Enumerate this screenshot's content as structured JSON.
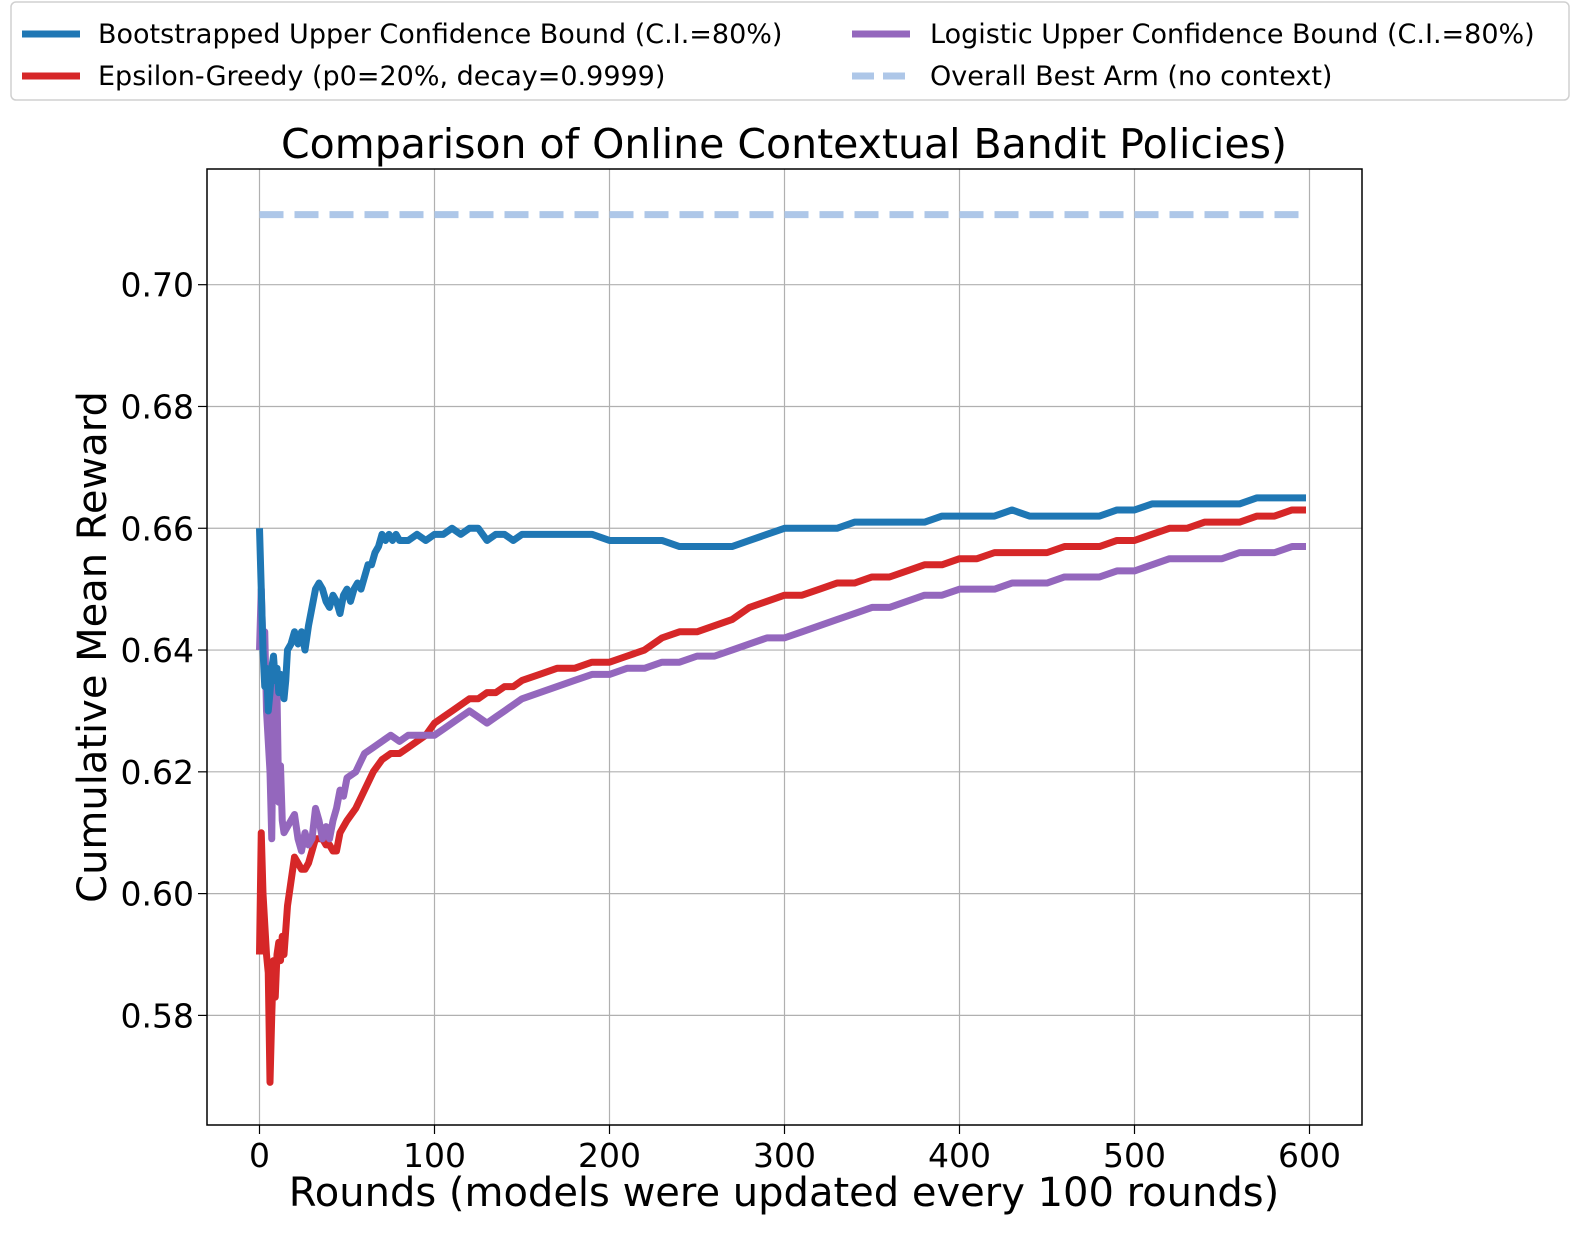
{
  "chart_data": {
    "type": "line",
    "title": "Comparison of Online Contextual Bandit Policies)",
    "xlabel": "Rounds (models were updated every 100 rounds)",
    "ylabel": "Cumulative Mean Reward",
    "xlim": [
      -30,
      630
    ],
    "ylim": [
      0.562,
      0.719
    ],
    "xticks": [
      0,
      100,
      200,
      300,
      400,
      500,
      600
    ],
    "xtick_labels": [
      "0",
      "100",
      "200",
      "300",
      "400",
      "500",
      "600"
    ],
    "yticks": [
      0.58,
      0.6,
      0.62,
      0.64,
      0.66,
      0.68,
      0.7
    ],
    "ytick_labels": [
      "0.58",
      "0.60",
      "0.62",
      "0.64",
      "0.66",
      "0.68",
      "0.70"
    ],
    "grid": true,
    "legend_position": "top, outside plot, two columns",
    "series": [
      {
        "name": "Bootstrapped Upper Confidence Bound (C.I.=80%)",
        "color": "#1f77b4",
        "style": "solid",
        "points": [
          [
            0,
            0.66
          ],
          [
            1,
            0.65
          ],
          [
            2,
            0.64
          ],
          [
            3,
            0.634
          ],
          [
            4,
            0.637
          ],
          [
            5,
            0.63
          ],
          [
            6,
            0.633
          ],
          [
            7,
            0.637
          ],
          [
            8,
            0.639
          ],
          [
            9,
            0.635
          ],
          [
            10,
            0.637
          ],
          [
            11,
            0.633
          ],
          [
            12,
            0.636
          ],
          [
            13,
            0.634
          ],
          [
            14,
            0.632
          ],
          [
            15,
            0.635
          ],
          [
            16,
            0.64
          ],
          [
            18,
            0.641
          ],
          [
            20,
            0.643
          ],
          [
            22,
            0.641
          ],
          [
            24,
            0.643
          ],
          [
            26,
            0.64
          ],
          [
            28,
            0.644
          ],
          [
            30,
            0.647
          ],
          [
            32,
            0.65
          ],
          [
            34,
            0.651
          ],
          [
            36,
            0.65
          ],
          [
            38,
            0.648
          ],
          [
            40,
            0.647
          ],
          [
            42,
            0.649
          ],
          [
            44,
            0.648
          ],
          [
            46,
            0.646
          ],
          [
            48,
            0.649
          ],
          [
            50,
            0.65
          ],
          [
            52,
            0.648
          ],
          [
            54,
            0.65
          ],
          [
            56,
            0.651
          ],
          [
            58,
            0.65
          ],
          [
            60,
            0.652
          ],
          [
            62,
            0.654
          ],
          [
            64,
            0.654
          ],
          [
            66,
            0.656
          ],
          [
            68,
            0.657
          ],
          [
            70,
            0.659
          ],
          [
            72,
            0.658
          ],
          [
            74,
            0.659
          ],
          [
            76,
            0.658
          ],
          [
            78,
            0.659
          ],
          [
            80,
            0.658
          ],
          [
            85,
            0.658
          ],
          [
            90,
            0.659
          ],
          [
            95,
            0.658
          ],
          [
            100,
            0.659
          ],
          [
            105,
            0.659
          ],
          [
            110,
            0.66
          ],
          [
            115,
            0.659
          ],
          [
            120,
            0.66
          ],
          [
            125,
            0.66
          ],
          [
            130,
            0.658
          ],
          [
            135,
            0.659
          ],
          [
            140,
            0.659
          ],
          [
            145,
            0.658
          ],
          [
            150,
            0.659
          ],
          [
            155,
            0.659
          ],
          [
            160,
            0.659
          ],
          [
            170,
            0.659
          ],
          [
            180,
            0.659
          ],
          [
            190,
            0.659
          ],
          [
            200,
            0.658
          ],
          [
            210,
            0.658
          ],
          [
            220,
            0.658
          ],
          [
            230,
            0.658
          ],
          [
            240,
            0.657
          ],
          [
            250,
            0.657
          ],
          [
            260,
            0.657
          ],
          [
            270,
            0.657
          ],
          [
            280,
            0.658
          ],
          [
            290,
            0.659
          ],
          [
            300,
            0.66
          ],
          [
            310,
            0.66
          ],
          [
            320,
            0.66
          ],
          [
            330,
            0.66
          ],
          [
            340,
            0.661
          ],
          [
            350,
            0.661
          ],
          [
            360,
            0.661
          ],
          [
            370,
            0.661
          ],
          [
            380,
            0.661
          ],
          [
            390,
            0.662
          ],
          [
            400,
            0.662
          ],
          [
            410,
            0.662
          ],
          [
            420,
            0.662
          ],
          [
            430,
            0.663
          ],
          [
            440,
            0.662
          ],
          [
            450,
            0.662
          ],
          [
            460,
            0.662
          ],
          [
            470,
            0.662
          ],
          [
            480,
            0.662
          ],
          [
            490,
            0.663
          ],
          [
            500,
            0.663
          ],
          [
            510,
            0.664
          ],
          [
            520,
            0.664
          ],
          [
            530,
            0.664
          ],
          [
            540,
            0.664
          ],
          [
            550,
            0.664
          ],
          [
            560,
            0.664
          ],
          [
            570,
            0.665
          ],
          [
            580,
            0.665
          ],
          [
            590,
            0.665
          ],
          [
            598,
            0.665
          ]
        ]
      },
      {
        "name": "Epsilon-Greedy (p0=20%, decay=0.9999)",
        "color": "#d62728",
        "style": "solid",
        "points": [
          [
            0,
            0.59
          ],
          [
            1,
            0.61
          ],
          [
            2,
            0.6
          ],
          [
            3,
            0.595
          ],
          [
            4,
            0.59
          ],
          [
            5,
            0.587
          ],
          [
            6,
            0.569
          ],
          [
            7,
            0.58
          ],
          [
            8,
            0.589
          ],
          [
            9,
            0.583
          ],
          [
            10,
            0.59
          ],
          [
            11,
            0.592
          ],
          [
            12,
            0.589
          ],
          [
            13,
            0.593
          ],
          [
            14,
            0.59
          ],
          [
            16,
            0.598
          ],
          [
            18,
            0.602
          ],
          [
            20,
            0.606
          ],
          [
            22,
            0.605
          ],
          [
            24,
            0.604
          ],
          [
            26,
            0.604
          ],
          [
            28,
            0.605
          ],
          [
            30,
            0.607
          ],
          [
            32,
            0.609
          ],
          [
            34,
            0.609
          ],
          [
            36,
            0.609
          ],
          [
            38,
            0.608
          ],
          [
            40,
            0.608
          ],
          [
            42,
            0.607
          ],
          [
            44,
            0.607
          ],
          [
            46,
            0.61
          ],
          [
            48,
            0.611
          ],
          [
            50,
            0.612
          ],
          [
            55,
            0.614
          ],
          [
            60,
            0.617
          ],
          [
            65,
            0.62
          ],
          [
            70,
            0.622
          ],
          [
            75,
            0.623
          ],
          [
            80,
            0.623
          ],
          [
            85,
            0.624
          ],
          [
            90,
            0.625
          ],
          [
            95,
            0.626
          ],
          [
            100,
            0.628
          ],
          [
            105,
            0.629
          ],
          [
            110,
            0.63
          ],
          [
            115,
            0.631
          ],
          [
            120,
            0.632
          ],
          [
            125,
            0.632
          ],
          [
            130,
            0.633
          ],
          [
            135,
            0.633
          ],
          [
            140,
            0.634
          ],
          [
            145,
            0.634
          ],
          [
            150,
            0.635
          ],
          [
            160,
            0.636
          ],
          [
            170,
            0.637
          ],
          [
            180,
            0.637
          ],
          [
            190,
            0.638
          ],
          [
            200,
            0.638
          ],
          [
            210,
            0.639
          ],
          [
            220,
            0.64
          ],
          [
            230,
            0.642
          ],
          [
            240,
            0.643
          ],
          [
            250,
            0.643
          ],
          [
            260,
            0.644
          ],
          [
            270,
            0.645
          ],
          [
            280,
            0.647
          ],
          [
            290,
            0.648
          ],
          [
            300,
            0.649
          ],
          [
            310,
            0.649
          ],
          [
            320,
            0.65
          ],
          [
            330,
            0.651
          ],
          [
            340,
            0.651
          ],
          [
            350,
            0.652
          ],
          [
            360,
            0.652
          ],
          [
            370,
            0.653
          ],
          [
            380,
            0.654
          ],
          [
            390,
            0.654
          ],
          [
            400,
            0.655
          ],
          [
            410,
            0.655
          ],
          [
            420,
            0.656
          ],
          [
            430,
            0.656
          ],
          [
            440,
            0.656
          ],
          [
            450,
            0.656
          ],
          [
            460,
            0.657
          ],
          [
            470,
            0.657
          ],
          [
            480,
            0.657
          ],
          [
            490,
            0.658
          ],
          [
            500,
            0.658
          ],
          [
            510,
            0.659
          ],
          [
            520,
            0.66
          ],
          [
            530,
            0.66
          ],
          [
            540,
            0.661
          ],
          [
            550,
            0.661
          ],
          [
            560,
            0.661
          ],
          [
            570,
            0.662
          ],
          [
            580,
            0.662
          ],
          [
            590,
            0.663
          ],
          [
            598,
            0.663
          ]
        ]
      },
      {
        "name": "Logistic Upper Confidence Bound (C.I.=80%)",
        "color": "#9467bd",
        "style": "solid",
        "points": [
          [
            0,
            0.64
          ],
          [
            1,
            0.65
          ],
          [
            2,
            0.64
          ],
          [
            3,
            0.643
          ],
          [
            4,
            0.63
          ],
          [
            5,
            0.625
          ],
          [
            6,
            0.62
          ],
          [
            7,
            0.609
          ],
          [
            8,
            0.634
          ],
          [
            9,
            0.623
          ],
          [
            10,
            0.633
          ],
          [
            11,
            0.615
          ],
          [
            12,
            0.621
          ],
          [
            13,
            0.612
          ],
          [
            14,
            0.61
          ],
          [
            16,
            0.611
          ],
          [
            18,
            0.612
          ],
          [
            20,
            0.613
          ],
          [
            22,
            0.609
          ],
          [
            24,
            0.607
          ],
          [
            26,
            0.61
          ],
          [
            28,
            0.608
          ],
          [
            30,
            0.609
          ],
          [
            32,
            0.614
          ],
          [
            34,
            0.612
          ],
          [
            36,
            0.609
          ],
          [
            38,
            0.611
          ],
          [
            40,
            0.609
          ],
          [
            42,
            0.612
          ],
          [
            44,
            0.614
          ],
          [
            46,
            0.617
          ],
          [
            48,
            0.616
          ],
          [
            50,
            0.619
          ],
          [
            55,
            0.62
          ],
          [
            60,
            0.623
          ],
          [
            65,
            0.624
          ],
          [
            70,
            0.625
          ],
          [
            75,
            0.626
          ],
          [
            80,
            0.625
          ],
          [
            85,
            0.626
          ],
          [
            90,
            0.626
          ],
          [
            95,
            0.626
          ],
          [
            100,
            0.626
          ],
          [
            105,
            0.627
          ],
          [
            110,
            0.628
          ],
          [
            115,
            0.629
          ],
          [
            120,
            0.63
          ],
          [
            125,
            0.629
          ],
          [
            130,
            0.628
          ],
          [
            135,
            0.629
          ],
          [
            140,
            0.63
          ],
          [
            145,
            0.631
          ],
          [
            150,
            0.632
          ],
          [
            160,
            0.633
          ],
          [
            170,
            0.634
          ],
          [
            180,
            0.635
          ],
          [
            190,
            0.636
          ],
          [
            200,
            0.636
          ],
          [
            210,
            0.637
          ],
          [
            220,
            0.637
          ],
          [
            230,
            0.638
          ],
          [
            240,
            0.638
          ],
          [
            250,
            0.639
          ],
          [
            260,
            0.639
          ],
          [
            270,
            0.64
          ],
          [
            280,
            0.641
          ],
          [
            290,
            0.642
          ],
          [
            300,
            0.642
          ],
          [
            310,
            0.643
          ],
          [
            320,
            0.644
          ],
          [
            330,
            0.645
          ],
          [
            340,
            0.646
          ],
          [
            350,
            0.647
          ],
          [
            360,
            0.647
          ],
          [
            370,
            0.648
          ],
          [
            380,
            0.649
          ],
          [
            390,
            0.649
          ],
          [
            400,
            0.65
          ],
          [
            410,
            0.65
          ],
          [
            420,
            0.65
          ],
          [
            430,
            0.651
          ],
          [
            440,
            0.651
          ],
          [
            450,
            0.651
          ],
          [
            460,
            0.652
          ],
          [
            470,
            0.652
          ],
          [
            480,
            0.652
          ],
          [
            490,
            0.653
          ],
          [
            500,
            0.653
          ],
          [
            510,
            0.654
          ],
          [
            520,
            0.655
          ],
          [
            530,
            0.655
          ],
          [
            540,
            0.655
          ],
          [
            550,
            0.655
          ],
          [
            560,
            0.656
          ],
          [
            570,
            0.656
          ],
          [
            580,
            0.656
          ],
          [
            590,
            0.657
          ],
          [
            598,
            0.657
          ]
        ]
      },
      {
        "name": "Overall Best Arm (no context)",
        "color": "#aec7e8",
        "style": "dashed",
        "points": [
          [
            0,
            0.7115
          ],
          [
            598,
            0.7115
          ]
        ]
      }
    ]
  }
}
